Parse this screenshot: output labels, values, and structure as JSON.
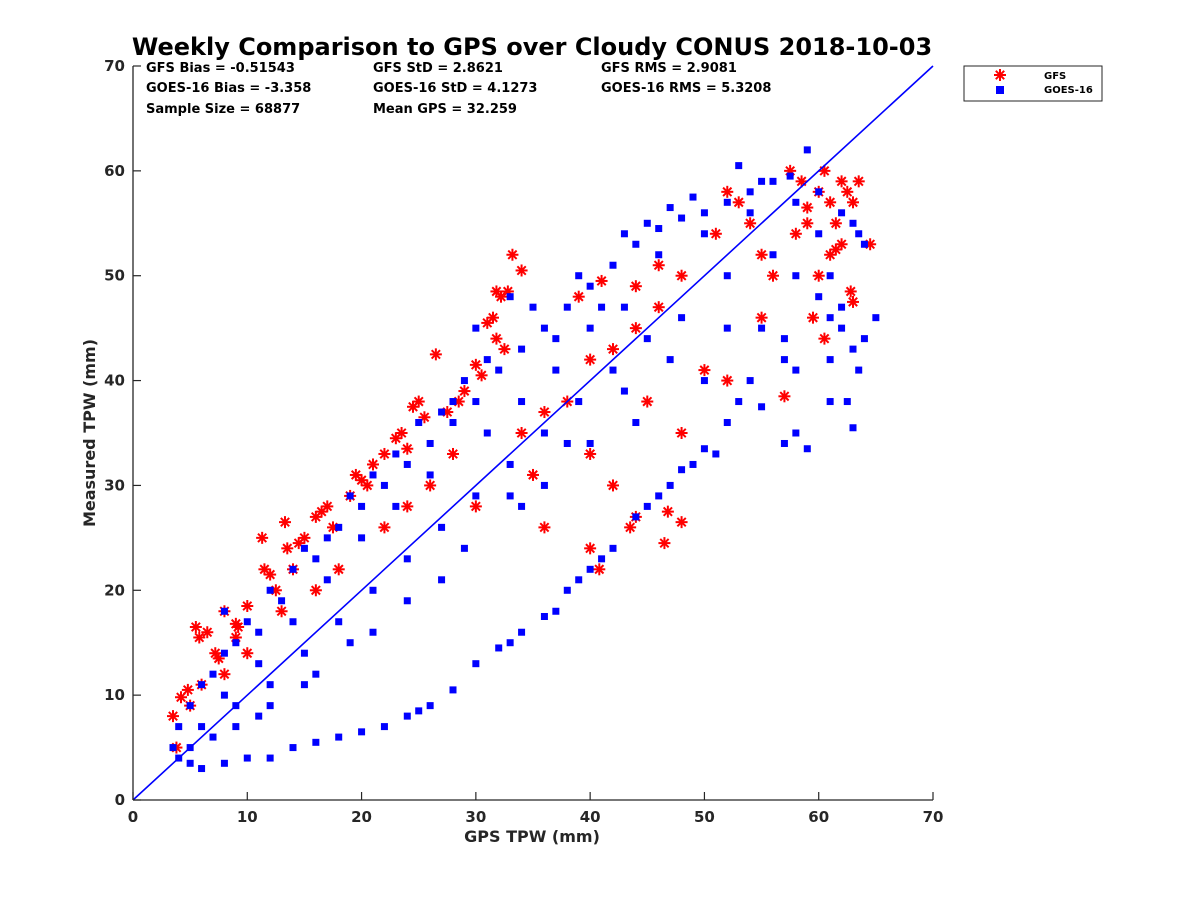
{
  "chart_data": {
    "type": "scatter",
    "title": "Weekly Comparison to GPS over Cloudy CONUS 2018-10-03",
    "xlabel": "GPS TPW (mm)",
    "ylabel": "Measured TPW (mm)",
    "xlim": [
      0,
      70
    ],
    "ylim": [
      0,
      70
    ],
    "xticks": [
      "0",
      "10",
      "20",
      "30",
      "40",
      "50",
      "60",
      "70"
    ],
    "yticks": [
      "0",
      "10",
      "20",
      "30",
      "40",
      "50",
      "60",
      "70"
    ],
    "grid": false,
    "legend_position": "top-right (outside plot)",
    "stats": [
      [
        "GFS Bias = -0.51543",
        "GFS StD = 2.8621",
        "GFS RMS = 2.9081"
      ],
      [
        "GOES-16 Bias = -3.358",
        "GOES-16 StD = 4.1273",
        "GOES-16 RMS = 5.3208"
      ],
      [
        "Sample Size = 68877",
        "Mean GPS = 32.259",
        ""
      ]
    ],
    "reference_line": {
      "x": [
        0,
        70
      ],
      "y": [
        0,
        70
      ],
      "color": "#0000ff"
    },
    "series": [
      {
        "name": "GFS",
        "marker": "asterisk",
        "color": "#ff0000",
        "points": [
          [
            3.5,
            8
          ],
          [
            3.8,
            5
          ],
          [
            4.2,
            9.8
          ],
          [
            4.8,
            10.5
          ],
          [
            5.5,
            16.5
          ],
          [
            5.8,
            15.5
          ],
          [
            6.5,
            16
          ],
          [
            7.2,
            14
          ],
          [
            7.5,
            13.5
          ],
          [
            8,
            18
          ],
          [
            9,
            15.5
          ],
          [
            9.2,
            16.5
          ],
          [
            10,
            18.5
          ],
          [
            11.3,
            25
          ],
          [
            11.5,
            22
          ],
          [
            12,
            21.5
          ],
          [
            13,
            18
          ],
          [
            13.3,
            26.5
          ],
          [
            13.5,
            24
          ],
          [
            14,
            22
          ],
          [
            15,
            25
          ],
          [
            16,
            27
          ],
          [
            16.5,
            27.5
          ],
          [
            17,
            28
          ],
          [
            19,
            29
          ],
          [
            19.5,
            31
          ],
          [
            20,
            30.5
          ],
          [
            21,
            32
          ],
          [
            22,
            33
          ],
          [
            23,
            34.5
          ],
          [
            23.5,
            35
          ],
          [
            24,
            33.5
          ],
          [
            24.5,
            37.5
          ],
          [
            25,
            38
          ],
          [
            25.5,
            36.5
          ],
          [
            26.5,
            42.5
          ],
          [
            27.5,
            37
          ],
          [
            28.5,
            38
          ],
          [
            29,
            39
          ],
          [
            30,
            41.5
          ],
          [
            30.5,
            40.5
          ],
          [
            31,
            45.5
          ],
          [
            31.5,
            46
          ],
          [
            31.8,
            48.5
          ],
          [
            32.2,
            48
          ],
          [
            32.8,
            48.5
          ],
          [
            33.2,
            52
          ],
          [
            34,
            50.5
          ],
          [
            31.8,
            44
          ],
          [
            32.5,
            43
          ],
          [
            40,
            24
          ],
          [
            40.8,
            22
          ],
          [
            43.5,
            26
          ],
          [
            44,
            27
          ],
          [
            46.5,
            24.5
          ],
          [
            46.8,
            27.5
          ],
          [
            48,
            26.5
          ],
          [
            57,
            38.5
          ],
          [
            57.5,
            60
          ],
          [
            58.5,
            59
          ],
          [
            59,
            56.5
          ],
          [
            60,
            58
          ],
          [
            60.5,
            60
          ],
          [
            61,
            57
          ],
          [
            61.5,
            55
          ],
          [
            62,
            59
          ],
          [
            62.5,
            58
          ],
          [
            63,
            57
          ],
          [
            63.5,
            59
          ],
          [
            64.5,
            53
          ],
          [
            63,
            47.5
          ],
          [
            62.8,
            48.5
          ],
          [
            62,
            53
          ],
          [
            61,
            52
          ],
          [
            60,
            50
          ],
          [
            59,
            55
          ],
          [
            58,
            54
          ],
          [
            56,
            50
          ],
          [
            55,
            52
          ],
          [
            54,
            55
          ],
          [
            53,
            57
          ],
          [
            52,
            58
          ],
          [
            51,
            54
          ],
          [
            48,
            50
          ],
          [
            46,
            47
          ],
          [
            44,
            45
          ],
          [
            42,
            43
          ],
          [
            40,
            42
          ],
          [
            38,
            38
          ],
          [
            36,
            37
          ],
          [
            34,
            35
          ],
          [
            28,
            33
          ],
          [
            26,
            30
          ],
          [
            24,
            28
          ],
          [
            22,
            26
          ],
          [
            18,
            22
          ],
          [
            16,
            20
          ],
          [
            10,
            14
          ],
          [
            8,
            12
          ],
          [
            6,
            11
          ],
          [
            5,
            9
          ],
          [
            30,
            28
          ],
          [
            35,
            31
          ],
          [
            40,
            33
          ],
          [
            45,
            38
          ],
          [
            50,
            41
          ],
          [
            55,
            46
          ],
          [
            52,
            40
          ],
          [
            48,
            35
          ],
          [
            42,
            30
          ],
          [
            36,
            26
          ],
          [
            9,
            16.8
          ],
          [
            12.5,
            20
          ],
          [
            14.5,
            24.5
          ],
          [
            17.5,
            26
          ],
          [
            20.5,
            30
          ],
          [
            44,
            49
          ],
          [
            46,
            51
          ],
          [
            41,
            49.5
          ],
          [
            39,
            48
          ],
          [
            59.5,
            46
          ],
          [
            60.5,
            44
          ],
          [
            61.5,
            52.5
          ]
        ]
      },
      {
        "name": "GOES-16",
        "marker": "square",
        "color": "#0000ff",
        "points": [
          [
            59,
            62
          ],
          [
            57.5,
            59.5
          ],
          [
            60,
            58
          ],
          [
            62,
            56
          ],
          [
            63,
            55
          ],
          [
            63.5,
            54
          ],
          [
            64,
            53
          ],
          [
            65,
            46
          ],
          [
            64,
            44
          ],
          [
            63.5,
            41
          ],
          [
            63,
            35.5
          ],
          [
            62.5,
            38
          ],
          [
            61,
            38
          ],
          [
            59,
            33.5
          ],
          [
            58,
            35
          ],
          [
            57,
            34
          ],
          [
            55,
            37.5
          ],
          [
            54,
            40
          ],
          [
            53,
            38
          ],
          [
            52,
            36
          ],
          [
            51,
            33
          ],
          [
            50,
            33.5
          ],
          [
            49,
            32
          ],
          [
            48,
            31.5
          ],
          [
            47,
            30
          ],
          [
            46,
            29
          ],
          [
            45,
            28
          ],
          [
            44,
            27
          ],
          [
            42,
            24
          ],
          [
            41,
            23
          ],
          [
            40,
            22
          ],
          [
            39,
            21
          ],
          [
            38,
            20
          ],
          [
            37,
            18
          ],
          [
            36,
            17.5
          ],
          [
            34,
            16
          ],
          [
            33,
            15
          ],
          [
            32,
            14.5
          ],
          [
            30,
            13
          ],
          [
            28,
            10.5
          ],
          [
            26,
            9
          ],
          [
            25,
            8.5
          ],
          [
            24,
            8
          ],
          [
            22,
            7
          ],
          [
            20,
            6.5
          ],
          [
            18,
            6
          ],
          [
            16,
            5.5
          ],
          [
            14,
            5
          ],
          [
            12,
            4
          ],
          [
            10,
            4
          ],
          [
            8,
            3.5
          ],
          [
            6,
            3
          ],
          [
            5,
            3.5
          ],
          [
            4,
            4
          ],
          [
            3.5,
            5
          ],
          [
            4,
            7
          ],
          [
            5,
            9
          ],
          [
            6,
            11
          ],
          [
            7,
            12
          ],
          [
            8,
            14
          ],
          [
            9,
            15
          ],
          [
            10,
            17
          ],
          [
            12,
            20
          ],
          [
            14,
            22
          ],
          [
            16,
            23
          ],
          [
            18,
            26
          ],
          [
            20,
            28
          ],
          [
            22,
            30
          ],
          [
            24,
            32
          ],
          [
            26,
            34
          ],
          [
            28,
            36
          ],
          [
            30,
            38
          ],
          [
            32,
            41
          ],
          [
            34,
            43
          ],
          [
            36,
            45
          ],
          [
            38,
            47
          ],
          [
            40,
            49
          ],
          [
            42,
            51
          ],
          [
            44,
            53
          ],
          [
            46,
            54.5
          ],
          [
            48,
            55.5
          ],
          [
            50,
            56
          ],
          [
            52,
            57
          ],
          [
            54,
            58
          ],
          [
            56,
            59
          ],
          [
            30,
            45
          ],
          [
            33,
            48
          ],
          [
            35,
            47
          ],
          [
            39,
            50
          ],
          [
            43,
            54
          ],
          [
            45,
            55
          ],
          [
            47,
            56.5
          ],
          [
            49,
            57.5
          ],
          [
            53,
            60.5
          ],
          [
            55,
            59
          ],
          [
            41,
            47
          ],
          [
            31,
            42
          ],
          [
            28,
            38
          ],
          [
            25,
            36
          ],
          [
            21,
            31
          ],
          [
            17,
            25
          ],
          [
            13,
            19
          ],
          [
            8,
            18
          ],
          [
            11,
            16
          ],
          [
            15,
            24
          ],
          [
            19,
            29
          ],
          [
            23,
            33
          ],
          [
            27,
            37
          ],
          [
            29,
            40
          ],
          [
            37,
            44
          ],
          [
            46,
            52
          ],
          [
            50,
            54
          ],
          [
            54,
            56
          ],
          [
            58,
            57
          ],
          [
            60,
            54
          ],
          [
            61,
            50
          ],
          [
            62,
            45
          ],
          [
            57,
            44
          ],
          [
            52,
            45
          ],
          [
            47,
            42
          ],
          [
            43,
            39
          ],
          [
            38,
            34
          ],
          [
            33,
            29
          ],
          [
            29,
            24
          ],
          [
            24,
            19
          ],
          [
            19,
            15
          ],
          [
            15,
            11
          ],
          [
            11,
            8
          ],
          [
            7,
            6
          ],
          [
            36,
            30
          ],
          [
            44,
            36
          ],
          [
            50,
            40
          ],
          [
            55,
            45
          ],
          [
            40,
            34
          ],
          [
            34,
            28
          ],
          [
            27,
            21
          ],
          [
            21,
            16
          ],
          [
            16,
            12
          ],
          [
            12,
            9
          ],
          [
            9,
            7
          ],
          [
            48,
            46
          ],
          [
            45,
            44
          ],
          [
            42,
            41
          ],
          [
            39,
            38
          ],
          [
            36,
            35
          ],
          [
            33,
            32
          ],
          [
            30,
            29
          ],
          [
            27,
            26
          ],
          [
            24,
            23
          ],
          [
            21,
            20
          ],
          [
            18,
            17
          ],
          [
            15,
            14
          ],
          [
            12,
            11
          ],
          [
            9,
            9
          ],
          [
            52,
            50
          ],
          [
            56,
            52
          ],
          [
            58,
            50
          ],
          [
            60,
            48
          ],
          [
            62,
            47
          ],
          [
            43,
            47
          ],
          [
            40,
            45
          ],
          [
            37,
            41
          ],
          [
            34,
            38
          ],
          [
            31,
            35
          ],
          [
            26,
            31
          ],
          [
            23,
            28
          ],
          [
            20,
            25
          ],
          [
            17,
            21
          ],
          [
            14,
            17
          ],
          [
            11,
            13
          ],
          [
            8,
            10
          ],
          [
            6,
            7
          ],
          [
            5,
            5
          ],
          [
            58,
            41
          ],
          [
            57,
            42
          ],
          [
            61,
            42
          ],
          [
            63,
            43
          ],
          [
            61,
            46
          ]
        ]
      }
    ]
  },
  "legend": {
    "items": [
      {
        "label": "GFS",
        "color": "#ff0000",
        "icon": "asterisk-marker-icon"
      },
      {
        "label": "GOES-16",
        "color": "#0000ff",
        "icon": "square-marker-icon"
      }
    ]
  }
}
